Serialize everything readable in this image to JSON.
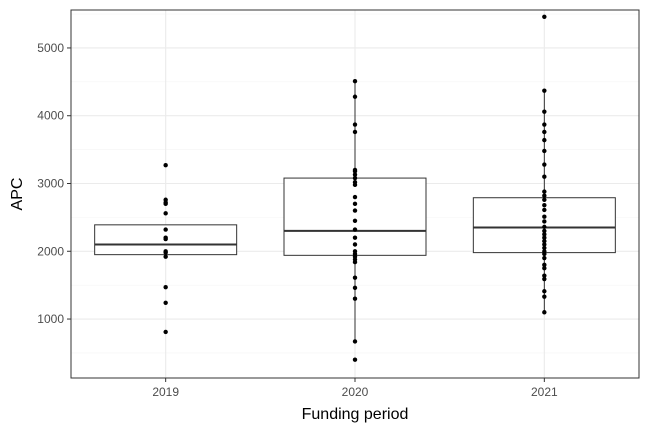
{
  "chart_data": {
    "type": "box",
    "xlabel": "Funding period",
    "ylabel": "APC",
    "categories": [
      "2019",
      "2020",
      "2021"
    ],
    "ylim": [
      130,
      5560
    ],
    "yticks": [
      1000,
      2000,
      3000,
      4000,
      5000
    ],
    "grid": true,
    "boxes": [
      {
        "category": "2019",
        "q1": 1950,
        "median": 2100,
        "q3": 2390,
        "whisker_low": 1950,
        "whisker_high": 2390
      },
      {
        "category": "2020",
        "q1": 1940,
        "median": 2300,
        "q3": 3080,
        "whisker_low": 680,
        "whisker_high": 4500
      },
      {
        "category": "2021",
        "q1": 1980,
        "median": 2350,
        "q3": 2790,
        "whisker_low": 1100,
        "whisker_high": 4380
      }
    ],
    "points": [
      {
        "category": "2019",
        "values": [
          3270,
          2760,
          2720,
          2700,
          2560,
          2320,
          2200,
          2180,
          2000,
          1980,
          1920,
          1470,
          1240,
          810
        ]
      },
      {
        "category": "2020",
        "values": [
          4510,
          4280,
          3870,
          3760,
          3200,
          3180,
          3130,
          3080,
          3020,
          2980,
          2800,
          2700,
          2600,
          2450,
          2320,
          2200,
          2100,
          2000,
          1960,
          1920,
          1880,
          1840,
          1610,
          1460,
          1300,
          670,
          400
        ]
      },
      {
        "category": "2021",
        "values": [
          5460,
          4370,
          4060,
          3870,
          3760,
          3640,
          3480,
          3280,
          3100,
          2880,
          2820,
          2760,
          2680,
          2610,
          2510,
          2440,
          2360,
          2300,
          2250,
          2200,
          2150,
          2100,
          2050,
          2000,
          1960,
          1900,
          1800,
          1750,
          1640,
          1590,
          1410,
          1330,
          1100
        ]
      }
    ]
  },
  "colors": {
    "panel_border": "#333333",
    "grid_major": "#ebebeb",
    "grid_minor": "#f5f5f5",
    "box_stroke": "#333333",
    "median": "#333333",
    "point": "#000000",
    "tick": "#333333"
  }
}
